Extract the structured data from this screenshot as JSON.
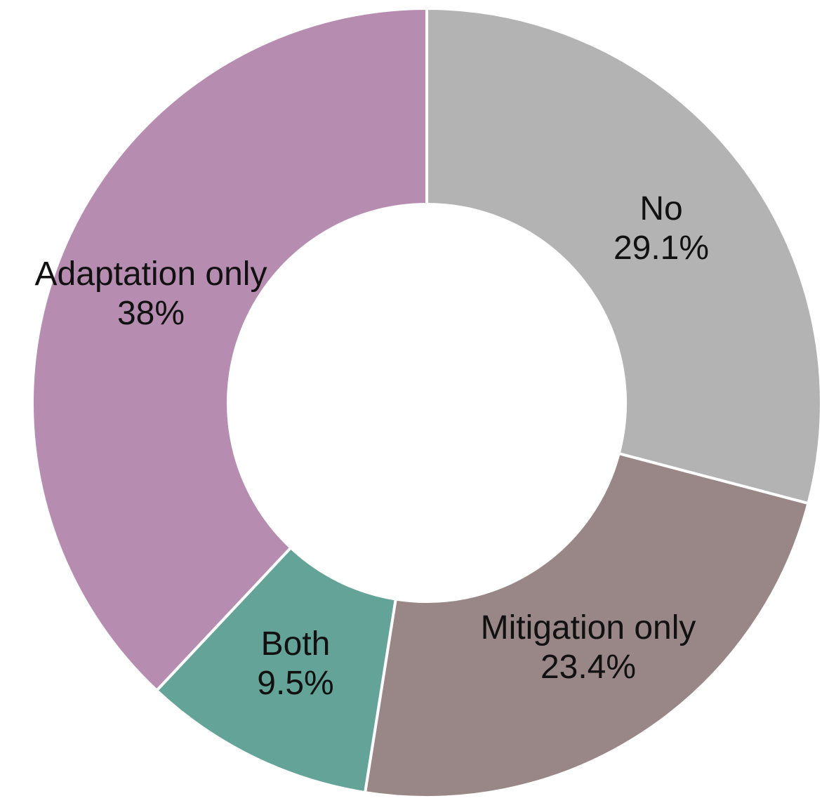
{
  "chart_data": {
    "type": "pie",
    "variant": "donut",
    "title": "",
    "slices": [
      {
        "name": "No",
        "value": 29.1,
        "label": "29.1%",
        "color": "#b3b3b3"
      },
      {
        "name": "Mitigation only",
        "value": 23.4,
        "label": "23.4%",
        "color": "#988786"
      },
      {
        "name": "Both",
        "value": 9.5,
        "label": "9.5%",
        "color": "#64a498"
      },
      {
        "name": "Adaptation only",
        "value": 38,
        "label": "38%",
        "color": "#b68db1"
      }
    ],
    "start_angle": "12 o'clock",
    "direction": "clockwise",
    "legend": "none",
    "separator_color": "#ffffff"
  }
}
